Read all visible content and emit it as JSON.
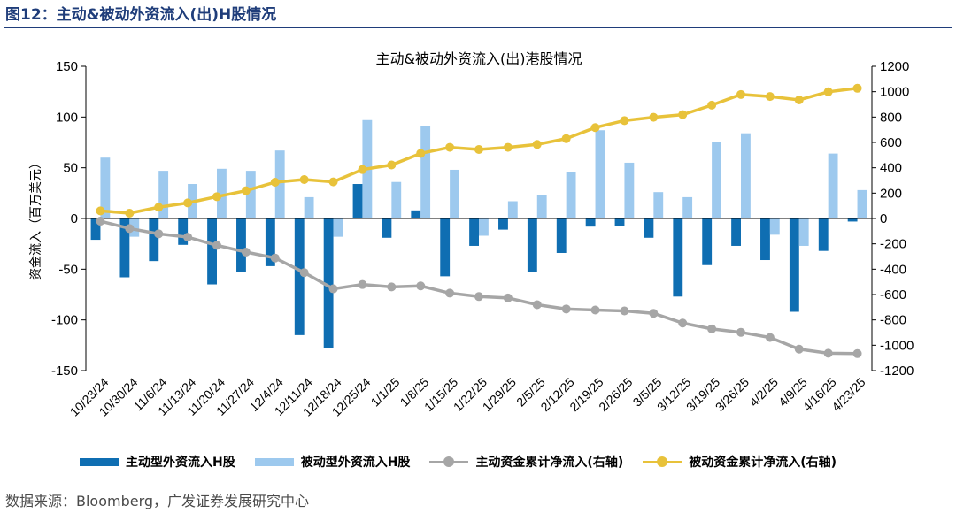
{
  "figure": {
    "label": "图12：",
    "title": "主动&被动外资流入(出)H股情况",
    "source": "数据来源：Bloomberg，广发证券发展研究中心"
  },
  "colors": {
    "active_bar": "#0f6eb2",
    "passive_bar": "#9dc9ee",
    "active_cum": "#a6a6a6",
    "passive_cum": "#e8c23a",
    "title_blue": "#1f3d7a"
  },
  "chart_data": {
    "type": "bar",
    "title": "主动&被动外资流入(出)港股情况",
    "ylabel": "资金流入（百万美元）",
    "ylim": [
      -150,
      150
    ],
    "yticks": [
      150,
      100,
      50,
      0,
      -50,
      -100,
      -150
    ],
    "y2lim": [
      -1200,
      1200
    ],
    "y2ticks": [
      1200,
      1000,
      800,
      600,
      400,
      200,
      0,
      -200,
      -400,
      -600,
      -800,
      -1000,
      -1200
    ],
    "grid": false,
    "legend_position": "bottom",
    "categories": [
      "10/23/24",
      "10/30/24",
      "11/6/24",
      "11/13/24",
      "11/20/24",
      "11/27/24",
      "12/4/24",
      "12/11/24",
      "12/18/24",
      "12/25/24",
      "1/1/25",
      "1/8/25",
      "1/15/25",
      "1/22/25",
      "1/29/25",
      "2/5/25",
      "2/12/25",
      "2/19/25",
      "2/26/25",
      "3/5/25",
      "3/12/25",
      "3/19/25",
      "3/26/25",
      "4/2/25",
      "4/9/25",
      "4/16/25",
      "4/23/25"
    ],
    "series": [
      {
        "name": "主动型外资流入H股",
        "type": "bar",
        "axis": "left",
        "values": [
          -21,
          -58,
          -42,
          -26,
          -65,
          -53,
          -47,
          -115,
          -128,
          34,
          -19,
          8,
          -57,
          -27,
          -11,
          -53,
          -34,
          -8,
          -7,
          -19,
          -77,
          -46,
          -27,
          -41,
          -92,
          -32,
          -3
        ]
      },
      {
        "name": "被动型外资流入H股",
        "type": "bar",
        "axis": "left",
        "values": [
          60,
          -18,
          47,
          34,
          49,
          47,
          67,
          21,
          -18,
          97,
          36,
          91,
          48,
          -17,
          17,
          23,
          46,
          87,
          55,
          26,
          21,
          75,
          84,
          -16,
          -27,
          64,
          28
        ]
      },
      {
        "name": "主动资金累计净流入(右轴)",
        "type": "line",
        "axis": "right",
        "values": [
          -21,
          -79,
          -121,
          -147,
          -212,
          -265,
          -312,
          -427,
          -555,
          -521,
          -540,
          -532,
          -589,
          -616,
          -627,
          -680,
          -714,
          -722,
          -729,
          -748,
          -825,
          -871,
          -898,
          -939,
          -1031,
          -1063,
          -1066
        ]
      },
      {
        "name": "被动资金累计净流入(右轴)",
        "type": "line",
        "axis": "right",
        "values": [
          60,
          42,
          89,
          123,
          172,
          219,
          286,
          307,
          289,
          386,
          422,
          513,
          561,
          544,
          561,
          584,
          630,
          717,
          772,
          798,
          819,
          894,
          978,
          962,
          935,
          999,
          1027
        ]
      }
    ]
  }
}
